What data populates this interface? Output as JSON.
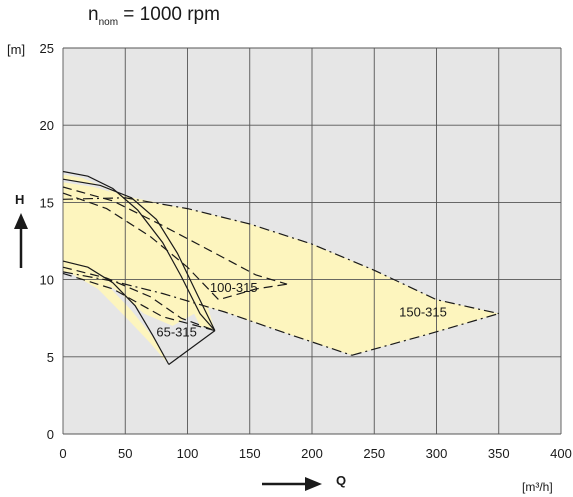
{
  "title": {
    "main": "n",
    "sub": "nom",
    "rest": " = 1000 rpm"
  },
  "chart_data": {
    "type": "line",
    "ylabel": "H",
    "yunit": "[m]",
    "xlabel": "Q",
    "xunit": "[m³/h]",
    "xlim": [
      0,
      400
    ],
    "ylim": [
      0,
      25
    ],
    "x_ticks": [
      0,
      50,
      100,
      150,
      200,
      250,
      300,
      350,
      400
    ],
    "y_ticks": [
      0,
      5,
      10,
      15,
      20,
      25
    ],
    "grid": true,
    "fill_color": "#fdf5be",
    "regions": [
      {
        "name": "65-315",
        "points": [
          [
            0,
            16.8
          ],
          [
            15,
            16.6
          ],
          [
            35,
            15.9
          ],
          [
            55,
            14.6
          ],
          [
            75,
            12.5
          ],
          [
            95,
            9.5
          ],
          [
            110,
            7.0
          ],
          [
            122,
            6.7
          ],
          [
            108,
            10.4
          ],
          [
            92,
            13.2
          ],
          [
            75,
            15.0
          ],
          [
            50,
            15.4
          ],
          [
            25,
            16.2
          ],
          [
            0,
            16.5
          ],
          [
            0,
            10.9
          ],
          [
            18,
            10.6
          ],
          [
            35,
            9.7
          ],
          [
            55,
            8.0
          ],
          [
            72,
            6.3
          ],
          [
            85,
            4.5
          ],
          [
            70,
            5.9
          ],
          [
            50,
            7.6
          ],
          [
            28,
            9.4
          ],
          [
            0,
            10.7
          ]
        ]
      },
      {
        "name": "100-315",
        "points": [
          [
            0,
            16.3
          ],
          [
            25,
            16.0
          ],
          [
            50,
            15.4
          ],
          [
            80,
            14.1
          ],
          [
            120,
            12.1
          ],
          [
            150,
            10.8
          ],
          [
            180,
            9.7
          ],
          [
            160,
            9.5
          ],
          [
            135,
            8.9
          ],
          [
            110,
            8.0
          ],
          [
            88,
            7.0
          ],
          [
            65,
            7.8
          ],
          [
            45,
            9.2
          ],
          [
            25,
            10.2
          ],
          [
            0,
            11.1
          ]
        ]
      },
      {
        "name": "150-315",
        "points": [
          [
            0,
            15.2
          ],
          [
            50,
            15.3
          ],
          [
            100,
            14.6
          ],
          [
            150,
            13.6
          ],
          [
            200,
            12.3
          ],
          [
            250,
            10.6
          ],
          [
            300,
            8.7
          ],
          [
            350,
            7.8
          ],
          [
            295,
            6.5
          ],
          [
            232,
            5.1
          ],
          [
            180,
            6.5
          ],
          [
            130,
            7.9
          ],
          [
            80,
            9.0
          ],
          [
            40,
            9.8
          ],
          [
            0,
            10.5
          ]
        ]
      }
    ],
    "curves": [
      {
        "style": "solid",
        "points": [
          [
            0,
            17.0
          ],
          [
            20,
            16.7
          ],
          [
            40,
            15.9
          ],
          [
            60,
            14.5
          ],
          [
            80,
            12.4
          ],
          [
            95,
            10.2
          ],
          [
            110,
            7.8
          ],
          [
            122,
            6.7
          ]
        ]
      },
      {
        "style": "solid",
        "points": [
          [
            0,
            16.5
          ],
          [
            30,
            16.1
          ],
          [
            55,
            15.3
          ],
          [
            75,
            13.9
          ],
          [
            92,
            11.7
          ],
          [
            108,
            9.0
          ],
          [
            122,
            6.7
          ]
        ]
      },
      {
        "style": "solid",
        "points": [
          [
            0,
            11.2
          ],
          [
            20,
            10.8
          ],
          [
            40,
            9.8
          ],
          [
            58,
            8.3
          ],
          [
            72,
            6.4
          ],
          [
            85,
            4.5
          ]
        ]
      },
      {
        "style": "solid",
        "points": [
          [
            85,
            4.5
          ],
          [
            122,
            6.7
          ]
        ]
      },
      {
        "style": "dashed",
        "points": [
          [
            0,
            16.0
          ],
          [
            40,
            15.1
          ],
          [
            80,
            13.5
          ],
          [
            120,
            11.8
          ],
          [
            155,
            10.3
          ],
          [
            180,
            9.7
          ]
        ]
      },
      {
        "style": "dashed",
        "points": [
          [
            0,
            15.6
          ],
          [
            35,
            14.6
          ],
          [
            70,
            12.8
          ],
          [
            100,
            10.8
          ],
          [
            125,
            8.7
          ],
          [
            155,
            9.4
          ],
          [
            180,
            9.7
          ]
        ]
      },
      {
        "style": "dashed",
        "points": [
          [
            0,
            10.8
          ],
          [
            35,
            10.1
          ],
          [
            70,
            8.9
          ],
          [
            95,
            7.5
          ],
          [
            122,
            6.7
          ]
        ]
      },
      {
        "style": "dashed",
        "points": [
          [
            0,
            10.4
          ],
          [
            40,
            9.4
          ],
          [
            80,
            7.6
          ],
          [
            122,
            6.7
          ]
        ]
      },
      {
        "style": "dashdot",
        "points": [
          [
            0,
            15.2
          ],
          [
            50,
            15.3
          ],
          [
            100,
            14.6
          ],
          [
            150,
            13.6
          ],
          [
            200,
            12.3
          ],
          [
            250,
            10.6
          ],
          [
            300,
            8.7
          ],
          [
            350,
            7.8
          ]
        ]
      },
      {
        "style": "dashdot",
        "points": [
          [
            0,
            10.5
          ],
          [
            40,
            9.9
          ],
          [
            80,
            9.1
          ],
          [
            130,
            7.9
          ],
          [
            180,
            6.5
          ],
          [
            232,
            5.1
          ]
        ]
      },
      {
        "style": "dashdot",
        "points": [
          [
            232,
            5.1
          ],
          [
            295,
            6.5
          ],
          [
            350,
            7.8
          ]
        ]
      }
    ],
    "labels": [
      {
        "text": "65-315",
        "x": 75,
        "y": 6.3
      },
      {
        "text": "100-315",
        "x": 118,
        "y": 9.2
      },
      {
        "text": "150-315",
        "x": 270,
        "y": 7.6
      }
    ]
  }
}
